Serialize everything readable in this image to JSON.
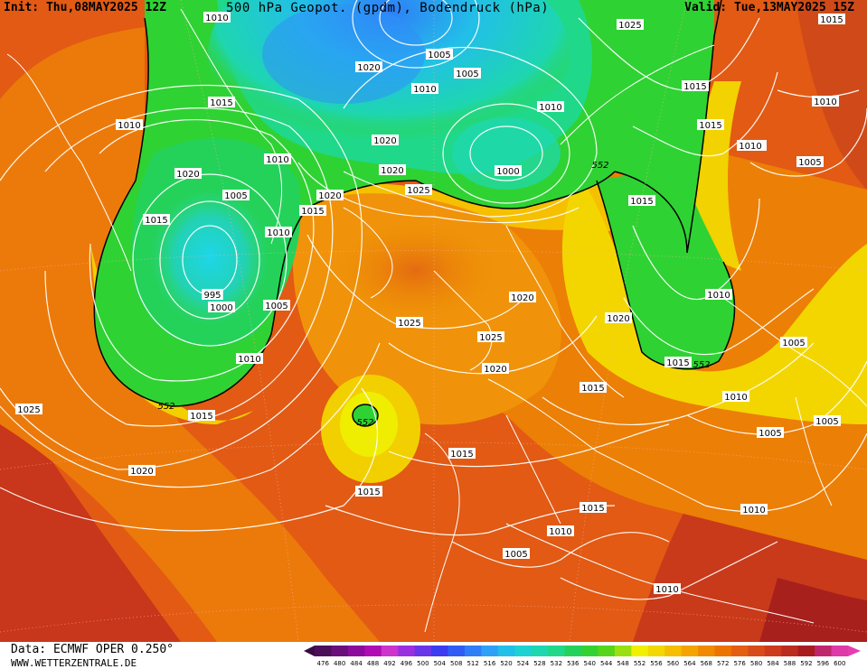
{
  "header": {
    "init": "Init: Thu,08MAY2025 12Z",
    "title": "500 hPa Geopot. (gpdm), Bodendruck (hPa)",
    "valid": "Valid: Tue,13MAY2025 15Z"
  },
  "footer": {
    "data_source": "Data: ECMWF OPER 0.250°",
    "website": "WWW.WETTERZENTRALE.DE"
  },
  "legend": {
    "values": [
      "476",
      "480",
      "484",
      "488",
      "492",
      "496",
      "500",
      "504",
      "508",
      "512",
      "516",
      "520",
      "524",
      "528",
      "532",
      "536",
      "540",
      "544",
      "548",
      "552",
      "556",
      "560",
      "564",
      "568",
      "572",
      "576",
      "580",
      "584",
      "588",
      "592",
      "596",
      "600"
    ],
    "colors": [
      "#4b0f5a",
      "#6a0e7c",
      "#8c0a9c",
      "#b00cb4",
      "#cc33cc",
      "#9a2fe0",
      "#6a35e8",
      "#3b3bf0",
      "#2f5cf5",
      "#2f7df7",
      "#2fa0f7",
      "#22bfe8",
      "#1dd2d2",
      "#1ed6b0",
      "#1fd88a",
      "#24d25a",
      "#33d233",
      "#55d61a",
      "#99e010",
      "#f0f000",
      "#f2d800",
      "#f5be00",
      "#f5a300",
      "#f08a00",
      "#ec7300",
      "#e45e12",
      "#d84b1a",
      "#cc3b1c",
      "#bb2c1e",
      "#a81c1f",
      "#c0266e",
      "#dd3aa8"
    ],
    "contour_552": "552"
  },
  "isobar_labels": [
    {
      "text": "1010",
      "name": "isobar-1010"
    },
    {
      "text": "1025",
      "name": "isobar-1025"
    },
    {
      "text": "1015",
      "name": "isobar-1015"
    },
    {
      "text": "1005",
      "name": "isobar-1005"
    },
    {
      "text": "1010",
      "name": "isobar-1010"
    },
    {
      "text": "1015",
      "name": "isobar-1015"
    },
    {
      "text": "1010",
      "name": "isobar-1010"
    },
    {
      "text": "1005",
      "name": "isobar-1005"
    },
    {
      "text": "1010",
      "name": "isobar-1010"
    },
    {
      "text": "1015",
      "name": "isobar-1015"
    },
    {
      "text": "1020",
      "name": "isobar-1020"
    },
    {
      "text": "1010",
      "name": "isobar-1010"
    },
    {
      "text": "1000",
      "name": "isobar-1000"
    },
    {
      "text": "1010",
      "name": "isobar-1010"
    },
    {
      "text": "1020",
      "name": "isobar-1020"
    },
    {
      "text": "1015",
      "name": "isobar-1015"
    },
    {
      "text": "1005",
      "name": "isobar-1005"
    },
    {
      "text": "1020",
      "name": "isobar-1020"
    },
    {
      "text": "1005",
      "name": "isobar-1005"
    },
    {
      "text": "1015",
      "name": "isobar-1015"
    },
    {
      "text": "1020",
      "name": "isobar-1020"
    },
    {
      "text": "1010",
      "name": "isobar-1010"
    },
    {
      "text": "1025",
      "name": "isobar-1025"
    },
    {
      "text": "1015",
      "name": "isobar-1015"
    },
    {
      "text": "1020",
      "name": "isobar-1020"
    },
    {
      "text": "1015",
      "name": "isobar-1015"
    },
    {
      "text": "1010",
      "name": "isobar-1010"
    },
    {
      "text": "995",
      "name": "isobar-995"
    },
    {
      "text": "1000",
      "name": "isobar-1000"
    },
    {
      "text": "1005",
      "name": "isobar-1005"
    },
    {
      "text": "1020",
      "name": "isobar-1020"
    },
    {
      "text": "1010",
      "name": "isobar-1010"
    },
    {
      "text": "1025",
      "name": "isobar-1025"
    },
    {
      "text": "1025",
      "name": "isobar-1025"
    },
    {
      "text": "1020",
      "name": "isobar-1020"
    },
    {
      "text": "1020",
      "name": "isobar-1020"
    },
    {
      "text": "1010",
      "name": "isobar-1010"
    },
    {
      "text": "1005",
      "name": "isobar-1005"
    },
    {
      "text": "1015",
      "name": "isobar-1015"
    },
    {
      "text": "1010",
      "name": "isobar-1010"
    },
    {
      "text": "1025",
      "name": "isobar-1025"
    },
    {
      "text": "1015",
      "name": "isobar-1015"
    },
    {
      "text": "1015",
      "name": "isobar-1015"
    },
    {
      "text": "1005",
      "name": "isobar-1005"
    },
    {
      "text": "1010",
      "name": "isobar-1010"
    },
    {
      "text": "1005",
      "name": "isobar-1005"
    },
    {
      "text": "1020",
      "name": "isobar-1020"
    },
    {
      "text": "1015",
      "name": "isobar-1015"
    },
    {
      "text": "1015",
      "name": "isobar-1015"
    },
    {
      "text": "1015",
      "name": "isobar-1015"
    },
    {
      "text": "1010",
      "name": "isobar-1010"
    },
    {
      "text": "1010",
      "name": "isobar-1010"
    },
    {
      "text": "1005",
      "name": "isobar-1005"
    },
    {
      "text": "1010",
      "name": "isobar-1010"
    }
  ],
  "geopot_labels": [
    {
      "text": "552",
      "name": "contour-552"
    },
    {
      "text": "552",
      "name": "contour-552"
    },
    {
      "text": "552",
      "name": "contour-552"
    },
    {
      "text": "552",
      "name": "contour-552"
    }
  ]
}
